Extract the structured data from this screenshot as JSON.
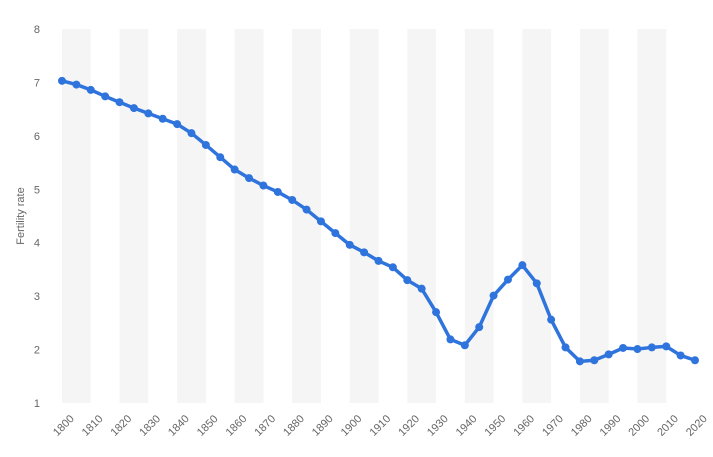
{
  "chart_data": {
    "type": "line",
    "title": "",
    "xlabel": "",
    "ylabel": "Fertility rate",
    "xlim": [
      1800,
      2020
    ],
    "ylim": [
      1,
      8
    ],
    "x_ticks": [
      "1800",
      "1810",
      "1820",
      "1830",
      "1840",
      "1850",
      "1860",
      "1870",
      "1880",
      "1890",
      "1900",
      "1910",
      "1920",
      "1930",
      "1940",
      "1950",
      "1960",
      "1970",
      "1980",
      "1990",
      "2000",
      "2010",
      "2020"
    ],
    "y_ticks": [
      "1",
      "2",
      "3",
      "4",
      "5",
      "6",
      "7",
      "8"
    ],
    "grid": "alternating vertical bands",
    "line_color": "#2f74dd",
    "band_color": "#f5f5f5",
    "series": [
      {
        "x": [
          1800,
          1805,
          1810,
          1815,
          1820,
          1825,
          1830,
          1835,
          1840,
          1845,
          1850,
          1855,
          1860,
          1865,
          1870,
          1875,
          1880,
          1885,
          1890,
          1895,
          1900,
          1905,
          1910,
          1915,
          1920,
          1925,
          1930,
          1935,
          1940,
          1945,
          1950,
          1955,
          1960,
          1965,
          1970,
          1975,
          1980,
          1985,
          1990,
          1995,
          2000,
          2005,
          2010,
          2015,
          2020
        ],
        "values": [
          7.03,
          6.96,
          6.86,
          6.74,
          6.63,
          6.52,
          6.42,
          6.32,
          6.22,
          6.05,
          5.83,
          5.6,
          5.37,
          5.21,
          5.07,
          4.95,
          4.8,
          4.62,
          4.4,
          4.18,
          3.96,
          3.82,
          3.66,
          3.54,
          3.3,
          3.14,
          2.7,
          2.19,
          2.08,
          2.42,
          3.01,
          3.31,
          3.58,
          3.24,
          2.56,
          2.04,
          1.78,
          1.8,
          1.91,
          2.03,
          2.01,
          2.04,
          2.06,
          1.89,
          1.8
        ]
      }
    ]
  }
}
